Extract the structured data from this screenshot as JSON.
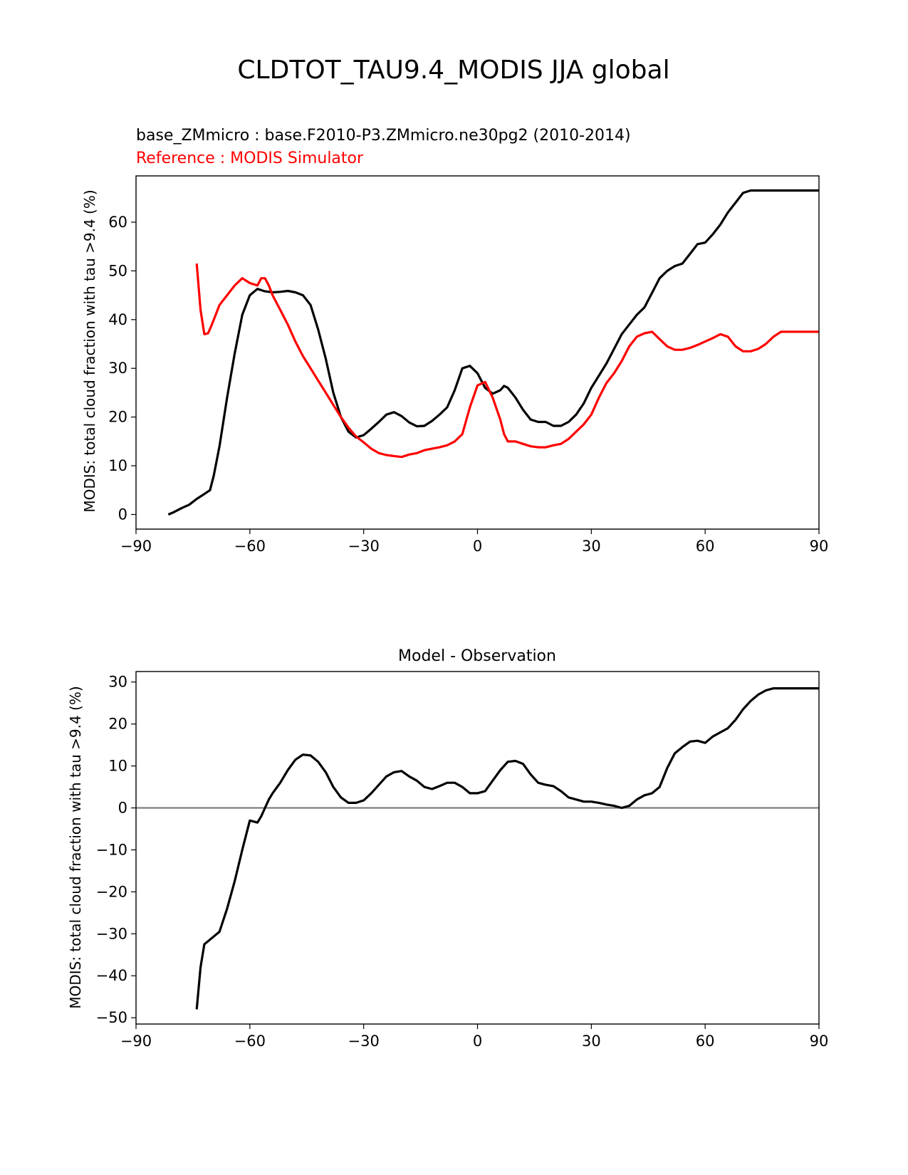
{
  "figure_title": "CLDTOT_TAU9.4_MODIS JJA global",
  "colors": {
    "test": "#000000",
    "reference": "#ff0000",
    "zero_line": "#808080"
  },
  "chart_data": [
    {
      "type": "line",
      "title_test": "base_ZMmicro : base.F2010-P3.ZMmicro.ne30pg2 (2010-2014)",
      "title_ref": "Reference : MODIS Simulator",
      "xlabel": "",
      "ylabel": "MODIS: total cloud fraction with tau >9.4 (%)",
      "xlim": [
        -90,
        90
      ],
      "ylim": [
        -3,
        69.5
      ],
      "xticks": [
        -90,
        -60,
        -30,
        0,
        30,
        60,
        90
      ],
      "xtick_labels": [
        "−90",
        "−60",
        "−30",
        "0",
        "30",
        "60",
        "90"
      ],
      "yticks": [
        0,
        10,
        20,
        30,
        40,
        50,
        60
      ],
      "ytick_labels": [
        "0",
        "10",
        "20",
        "30",
        "40",
        "50",
        "60"
      ],
      "series": [
        {
          "name": "base_ZMmicro",
          "color": "#000000",
          "x": [
            -81.5,
            -80,
            -78,
            -76,
            -74,
            -72,
            -70.5,
            -69.5,
            -68,
            -66,
            -64,
            -62,
            -60,
            -58,
            -56,
            -54,
            -52,
            -50,
            -48,
            -46,
            -44,
            -42,
            -40,
            -38,
            -36,
            -34,
            -32,
            -30,
            -28,
            -26,
            -24,
            -22,
            -20,
            -18,
            -16,
            -14,
            -12,
            -10,
            -8,
            -6,
            -4,
            -2,
            0,
            2,
            4,
            6,
            7,
            8,
            10,
            12,
            14,
            16,
            18,
            20,
            22,
            24,
            26,
            28,
            30,
            32,
            34,
            36,
            38,
            40,
            42,
            44,
            46,
            48,
            50,
            52,
            54,
            56,
            58,
            60,
            62,
            64,
            66,
            68,
            70,
            72,
            74,
            76,
            78,
            80,
            82,
            84,
            86,
            88,
            90
          ],
          "values": [
            0,
            0.5,
            1.3,
            2.0,
            3.2,
            4.2,
            5.0,
            8.0,
            14,
            24,
            33,
            41,
            45,
            46.3,
            45.8,
            45.6,
            45.7,
            45.9,
            45.6,
            45,
            43,
            38,
            32,
            25,
            20,
            17,
            15.8,
            16.3,
            17.6,
            19,
            20.5,
            21,
            20.2,
            18.9,
            18.1,
            18.2,
            19.2,
            20.5,
            22,
            25.5,
            30,
            30.5,
            29,
            26,
            24.8,
            25.5,
            26.4,
            26,
            24,
            21.5,
            19.5,
            19,
            19,
            18.2,
            18.2,
            19,
            20.5,
            22.8,
            26,
            28.5,
            31,
            34,
            37,
            39,
            41,
            42.5,
            45.5,
            48.5,
            50,
            51,
            51.5,
            53.5,
            55.5,
            55.8,
            57.5,
            59.5,
            62,
            64,
            66,
            66.5,
            66.5,
            66.5,
            66.5,
            66.5,
            66.5,
            66.5,
            66.5,
            66.5,
            66.5
          ]
        },
        {
          "name": "MODIS Simulator",
          "color": "#ff0000",
          "x": [
            -74,
            -73,
            -72,
            -71,
            -70,
            -68,
            -66,
            -64,
            -62,
            -61,
            -60,
            -58,
            -57,
            -56,
            -55,
            -54,
            -52,
            -50,
            -48,
            -46,
            -44,
            -42,
            -40,
            -38,
            -36,
            -34,
            -32,
            -30,
            -28,
            -26,
            -24,
            -22,
            -20,
            -18,
            -16,
            -14,
            -12,
            -10,
            -8,
            -6,
            -4,
            -2,
            0,
            2,
            4,
            6,
            7,
            8,
            10,
            12,
            14,
            16,
            18,
            20,
            22,
            24,
            26,
            28,
            30,
            32,
            34,
            36,
            38,
            40,
            42,
            44,
            46,
            48,
            50,
            52,
            54,
            56,
            58,
            60,
            62,
            64,
            66,
            68,
            70,
            72,
            74,
            76,
            78,
            80,
            82,
            84,
            86,
            88,
            90
          ],
          "values": [
            51.5,
            42,
            37,
            37.2,
            39,
            43,
            45,
            47,
            48.5,
            48,
            47.5,
            47,
            48.5,
            48.5,
            47,
            45,
            42,
            39,
            35.5,
            32.5,
            30,
            27.5,
            25,
            22.5,
            20,
            17.8,
            16,
            14.8,
            13.5,
            12.6,
            12.2,
            12,
            11.8,
            12.3,
            12.6,
            13.2,
            13.5,
            13.8,
            14.2,
            15,
            16.5,
            22,
            26.5,
            27.2,
            24,
            19.5,
            16.5,
            15,
            15,
            14.5,
            14,
            13.8,
            13.8,
            14.2,
            14.5,
            15.5,
            17,
            18.5,
            20.5,
            24,
            27,
            29,
            31.5,
            34.5,
            36.5,
            37.2,
            37.5,
            36,
            34.5,
            33.8,
            33.8,
            34.2,
            34.8,
            35.5,
            36.2,
            37,
            36.5,
            34.5,
            33.5,
            33.5,
            34,
            35,
            36.5,
            37.5,
            37.5,
            37.5,
            37.5,
            37.5,
            37.5
          ]
        }
      ]
    },
    {
      "type": "line",
      "title": "Model - Observation",
      "xlabel": "",
      "ylabel": "MODIS: total cloud fraction with tau >9.4 (%)",
      "xlim": [
        -90,
        90
      ],
      "ylim": [
        -51.5,
        32.5
      ],
      "xticks": [
        -90,
        -60,
        -30,
        0,
        30,
        60,
        90
      ],
      "xtick_labels": [
        "−90",
        "−60",
        "−30",
        "0",
        "30",
        "60",
        "90"
      ],
      "yticks": [
        -50,
        -40,
        -30,
        -20,
        -10,
        0,
        10,
        20,
        30
      ],
      "ytick_labels": [
        "−50",
        "−40",
        "−30",
        "−20",
        "−10",
        "0",
        "10",
        "20",
        "30"
      ],
      "zero_line": 0,
      "series": [
        {
          "name": "Model - Observation",
          "color": "#000000",
          "x": [
            -74,
            -73,
            -72,
            -70,
            -68,
            -66,
            -64,
            -62,
            -60,
            -58,
            -57,
            -56,
            -55,
            -54,
            -52,
            -50,
            -48,
            -46,
            -44,
            -42,
            -40,
            -38,
            -36,
            -34,
            -32,
            -30,
            -28,
            -26,
            -24,
            -22,
            -20,
            -18,
            -16,
            -14,
            -12,
            -10,
            -8,
            -6,
            -4,
            -2,
            0,
            2,
            4,
            6,
            8,
            10,
            12,
            14,
            16,
            18,
            20,
            22,
            24,
            26,
            28,
            30,
            32,
            34,
            36,
            38,
            40,
            42,
            44,
            46,
            48,
            50,
            52,
            54,
            56,
            58,
            60,
            62,
            64,
            66,
            68,
            70,
            72,
            74,
            76,
            78,
            80,
            82,
            84,
            86,
            88,
            90
          ],
          "values": [
            -48,
            -38,
            -32.5,
            -31,
            -29.5,
            -24,
            -17.5,
            -10,
            -3,
            -3.5,
            -2,
            0,
            2,
            3.5,
            6,
            9,
            11.5,
            12.7,
            12.5,
            11,
            8.5,
            5,
            2.5,
            1.2,
            1.2,
            1.8,
            3.5,
            5.5,
            7.5,
            8.5,
            8.8,
            7.5,
            6.5,
            5,
            4.5,
            5.2,
            6,
            6,
            5,
            3.5,
            3.5,
            4,
            6.5,
            9,
            11,
            11.2,
            10.5,
            8,
            6,
            5.5,
            5.2,
            4,
            2.5,
            2,
            1.5,
            1.5,
            1.2,
            0.8,
            0.5,
            0,
            0.5,
            2,
            3,
            3.5,
            5,
            9.5,
            13,
            14.5,
            15.8,
            16,
            15.5,
            17,
            18,
            19,
            21,
            23.5,
            25.5,
            27,
            28,
            28.5,
            28.5,
            28.5,
            28.5,
            28.5,
            28.5,
            28.5
          ]
        }
      ]
    }
  ]
}
